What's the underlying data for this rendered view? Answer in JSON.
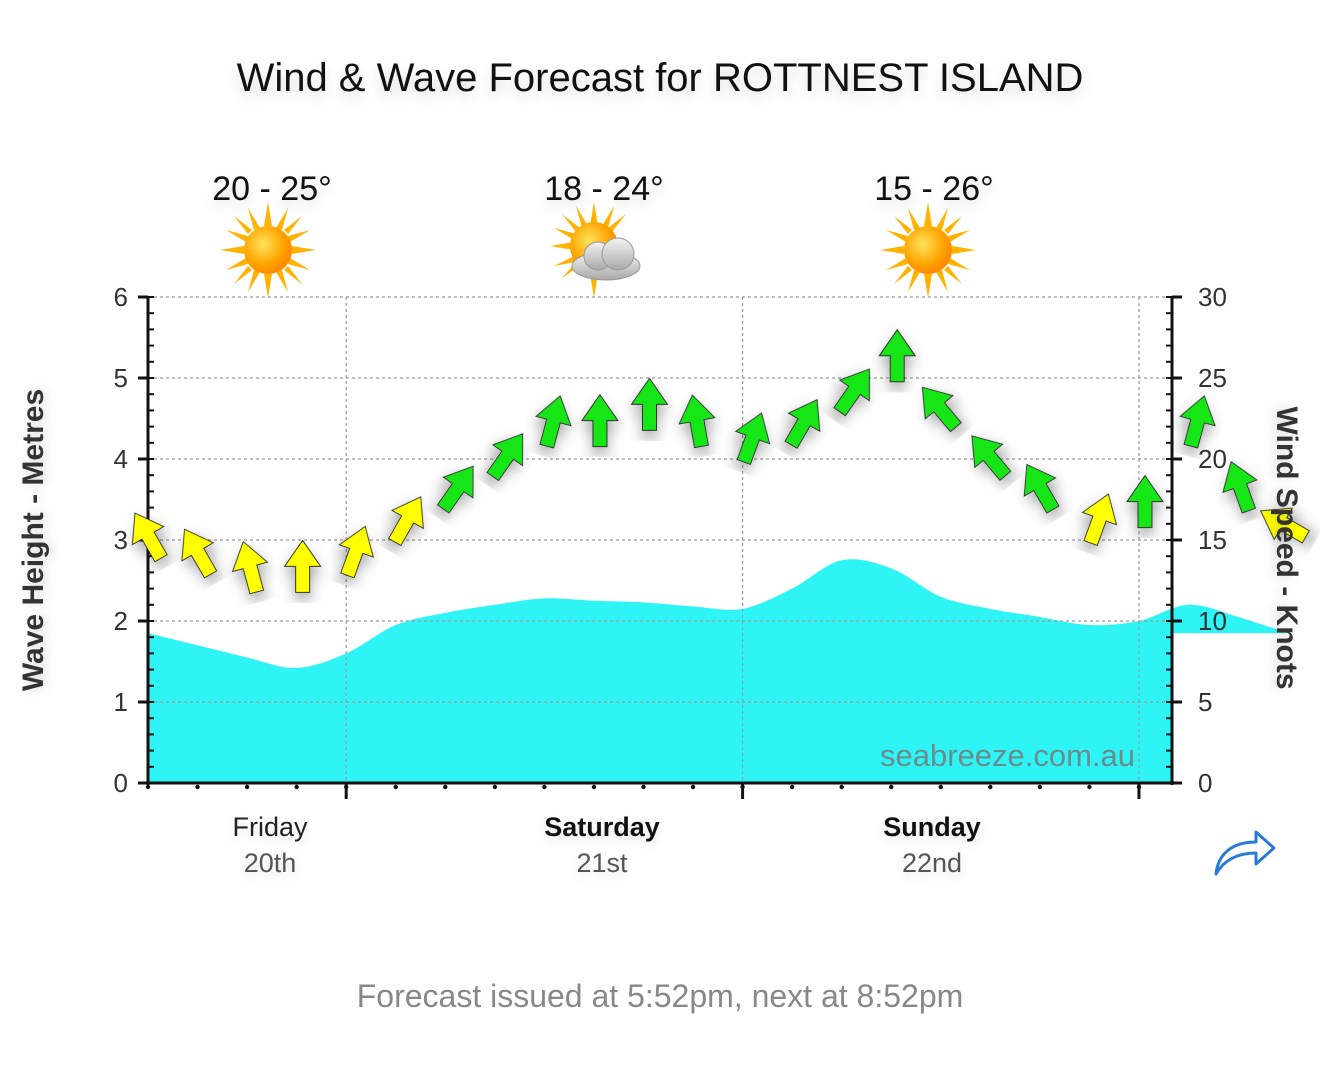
{
  "header": {
    "title": "Wind & Wave Forecast for ROTTNEST ISLAND"
  },
  "days": [
    {
      "name": "Friday",
      "date": "20th",
      "temp": "20 - 25°",
      "icon": "sunny-icon",
      "bold": false
    },
    {
      "name": "Saturday",
      "date": "21st",
      "temp": "18 - 24°",
      "icon": "partly-cloudy-icon",
      "bold": true
    },
    {
      "name": "Sunday",
      "date": "22nd",
      "temp": "15 - 26°",
      "icon": "sunny-icon",
      "bold": true
    }
  ],
  "watermark": "seabreeze.com.au",
  "footer": "Forecast issued at 5:52pm, next at 8:52pm",
  "share_icon": "share-arrow-icon",
  "colors": {
    "wave_fill": "#2ff4f6",
    "wind_light": "#ffff00",
    "wind_strong": "#17e617",
    "share": "#2a7bd6"
  },
  "chart_data": {
    "type": "area",
    "xlabel": "",
    "x_categories": [
      "Friday 20th",
      "Saturday 21st",
      "Sunday 22nd"
    ],
    "y_left": {
      "label": "Wave Height - Metres",
      "range": [
        0,
        6
      ],
      "ticks": [
        "0",
        "1",
        "2",
        "3",
        "4",
        "5",
        "6"
      ]
    },
    "y_right": {
      "label": "Wind Speed - Knots",
      "range": [
        0,
        30
      ],
      "ticks": [
        "0",
        "5",
        "10",
        "15",
        "20",
        "25",
        "30"
      ]
    },
    "grid": true,
    "hours": [
      0,
      3,
      6,
      9,
      12,
      15,
      18,
      21,
      24,
      27,
      30,
      33,
      36,
      39,
      42,
      45,
      48,
      51,
      54,
      57,
      60,
      63,
      66,
      69
    ],
    "series": [
      {
        "axis": "left",
        "values": [
          1.85,
          1.7,
          1.55,
          1.42,
          1.6,
          1.95,
          2.1,
          2.2,
          2.28,
          2.25,
          2.23,
          2.18,
          2.15,
          2.4,
          2.75,
          2.65,
          2.3,
          2.15,
          2.05,
          1.95,
          2.0,
          2.2,
          2.05,
          1.85
        ]
      },
      {
        "axis": "right",
        "wind_kn": [
          15,
          14,
          13,
          13,
          14,
          16,
          18,
          20,
          22,
          22,
          23,
          22,
          21,
          22,
          24,
          26,
          23,
          20,
          18,
          16,
          17,
          22,
          18,
          16
        ],
        "direction_deg": [
          330,
          330,
          345,
          0,
          20,
          30,
          35,
          35,
          15,
          0,
          0,
          350,
          20,
          30,
          35,
          0,
          320,
          320,
          330,
          20,
          0,
          15,
          340,
          300
        ]
      }
    ]
  }
}
